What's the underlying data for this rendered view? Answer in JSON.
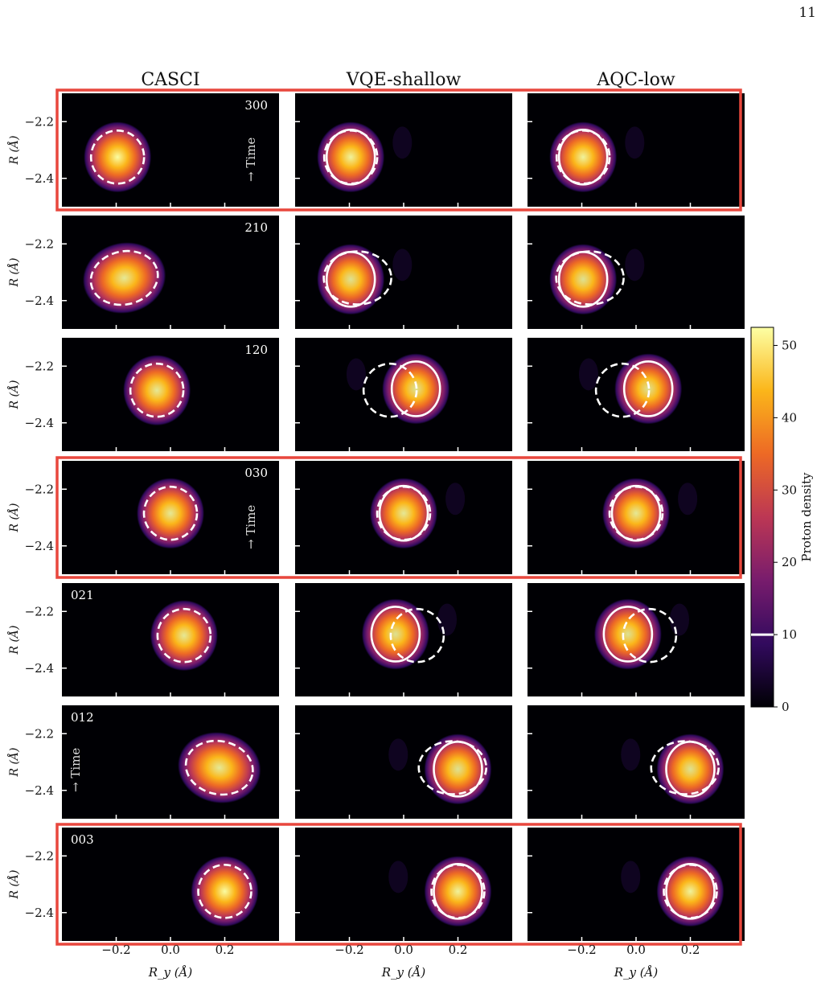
{
  "page_number": "11",
  "chart_data": {
    "type": "heatmap",
    "columns": [
      "CASCI",
      "VQE-shallow",
      "AQC-low"
    ],
    "row_labels": [
      "300",
      "210",
      "120",
      "030",
      "021",
      "012",
      "003"
    ],
    "highlighted_rows": [
      0,
      3,
      6
    ],
    "time_arrow_rows": [
      0,
      3,
      5
    ],
    "time_label": "Time",
    "time_arrow_glyph": "→",
    "xlabel": "R_y (Å)",
    "ylabel": "R_x (Å)",
    "xlim": [
      -0.4,
      0.4
    ],
    "ylim": [
      -2.5,
      -2.1
    ],
    "x_ticks": [
      -0.2,
      0.0,
      0.2
    ],
    "x_tick_labels": [
      "−0.2",
      "0.0",
      "0.2"
    ],
    "y_ticks": [
      -2.2,
      -2.4
    ],
    "y_tick_labels": [
      "−2.2",
      "−2.4"
    ],
    "colorbar": {
      "label": "Proton density",
      "min": 0,
      "max": 52.5,
      "ticks": [
        0,
        10,
        20,
        30,
        40,
        50
      ],
      "contour_level": 10
    },
    "colormap": [
      "#000004",
      "#320a5e",
      "#781c6d",
      "#bc3754",
      "#ed6925",
      "#fbb61a",
      "#fcffa4"
    ],
    "highlight_color": "#e8473d",
    "casci_peaks": [
      {
        "row": "300",
        "x": -0.195,
        "y": -2.325,
        "peak": 52
      },
      {
        "row": "210",
        "x": -0.17,
        "y": -2.32,
        "peak": 48
      },
      {
        "row": "120",
        "x": -0.05,
        "y": -2.285,
        "peak": 48
      },
      {
        "row": "030",
        "x": 0.0,
        "y": -2.285,
        "peak": 48
      },
      {
        "row": "021",
        "x": 0.05,
        "y": -2.285,
        "peak": 48
      },
      {
        "row": "012",
        "x": 0.18,
        "y": -2.32,
        "peak": 48
      },
      {
        "row": "003",
        "x": 0.2,
        "y": -2.325,
        "peak": 52
      }
    ],
    "approx_peaks": [
      {
        "row": "300",
        "x": -0.195,
        "y": -2.325,
        "peak": 50
      },
      {
        "row": "210",
        "x": -0.195,
        "y": -2.325,
        "peak": 46
      },
      {
        "row": "120",
        "x": 0.045,
        "y": -2.28,
        "peak": 46
      },
      {
        "row": "030",
        "x": 0.0,
        "y": -2.285,
        "peak": 48
      },
      {
        "row": "021",
        "x": -0.03,
        "y": -2.28,
        "peak": 46
      },
      {
        "row": "012",
        "x": 0.2,
        "y": -2.325,
        "peak": 46
      },
      {
        "row": "003",
        "x": 0.2,
        "y": -2.325,
        "peak": 50
      }
    ]
  }
}
